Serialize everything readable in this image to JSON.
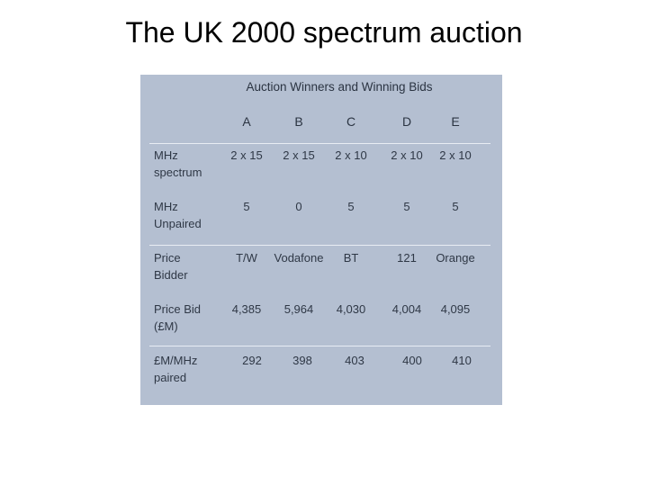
{
  "slide": {
    "title": "The UK 2000 spectrum auction"
  },
  "table": {
    "caption": "Auction Winners and Winning Bids",
    "columns": [
      "A",
      "B",
      "C",
      "D",
      "E"
    ],
    "rows": [
      {
        "label_line1": "MHz",
        "label_line2": "spectrum",
        "cells": [
          "2 x 15",
          "2 x 15",
          "2 x 10",
          "2 x 10",
          "2 x 10"
        ]
      },
      {
        "label_line1": "MHz",
        "label_line2": "Unpaired",
        "cells": [
          "5",
          "0",
          "5",
          "5",
          "5"
        ]
      },
      {
        "label_line1": "Price",
        "label_line2": "Bidder",
        "cells": [
          "T/W",
          "Vodafone",
          "BT",
          "121",
          "Orange"
        ]
      },
      {
        "label_line1": "Price Bid",
        "label_line2": "(£M)",
        "cells": [
          "4,385",
          "5,964",
          "4,030",
          "4,004",
          "4,095"
        ]
      },
      {
        "label_line1": "£M/MHz",
        "label_line2": "paired",
        "cells": [
          "292",
          "398",
          "403",
          "400",
          "410"
        ]
      }
    ]
  },
  "colors": {
    "table_background": "#b4bfd1",
    "table_text": "#2f3846",
    "rule": "#e8edf4"
  }
}
